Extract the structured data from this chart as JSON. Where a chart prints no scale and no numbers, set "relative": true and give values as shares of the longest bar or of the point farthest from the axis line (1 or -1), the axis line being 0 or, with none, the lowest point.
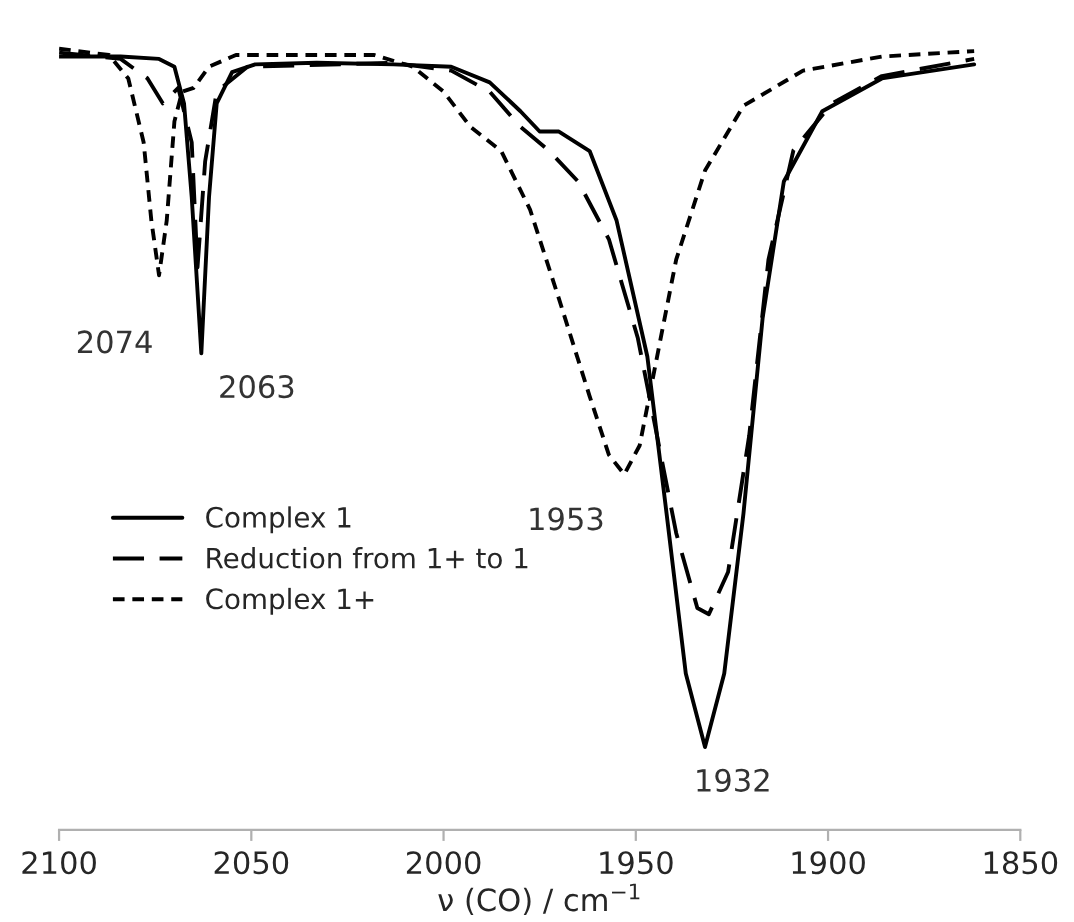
{
  "chart_data": {
    "type": "line",
    "relative": true,
    "xlabel": "ν (CO) / cm$^{−1}$",
    "xlim": [
      2100,
      1850
    ],
    "xticks": [
      2100,
      2050,
      2000,
      1950,
      1900,
      1850
    ],
    "grid": false,
    "legend": "left",
    "marker": "none",
    "series": [
      {
        "name": "Complex 1",
        "color": "#000000",
        "line_style": "solid",
        "x": [
          2100,
          2084,
          2074,
          2070,
          2067.5,
          2065.5,
          2063,
          2061,
          2059,
          2055,
          2049,
          2033,
          2013,
          1998,
          1988,
          1980,
          1975,
          1970,
          1962,
          1955,
          1947,
          1942,
          1937,
          1932,
          1927,
          1922,
          1917,
          1911.5,
          1901.5,
          1886,
          1862
        ],
        "values": [
          0.99,
          0.99,
          0.987,
          0.977,
          0.93,
          0.81,
          0.61,
          0.81,
          0.93,
          0.97,
          0.98,
          0.982,
          0.98,
          0.977,
          0.957,
          0.92,
          0.894,
          0.894,
          0.869,
          0.78,
          0.606,
          0.405,
          0.2,
          0.106,
          0.2,
          0.405,
          0.656,
          0.83,
          0.92,
          0.962,
          0.98
        ]
      },
      {
        "name": "Reduction from 1+ to 1",
        "color": "#000000",
        "line_style": "dashed",
        "x": [
          2100,
          2084,
          2077,
          2073,
          2069,
          2065.5,
          2064,
          2062,
          2059,
          2051,
          2013,
          1998,
          1988,
          1980,
          1972.5,
          1965,
          1957,
          1949.5,
          1944.5,
          1939.5,
          1934,
          1931,
          1926,
          1920.5,
          1915.5,
          1909,
          1899,
          1886,
          1862
        ],
        "values": [
          0.995,
          0.987,
          0.962,
          0.93,
          0.95,
          0.88,
          0.72,
          0.856,
          0.945,
          0.977,
          0.982,
          0.972,
          0.945,
          0.9,
          0.869,
          0.83,
          0.756,
          0.63,
          0.505,
          0.38,
          0.284,
          0.276,
          0.33,
          0.505,
          0.73,
          0.87,
          0.93,
          0.965,
          0.987
        ]
      },
      {
        "name": "Complex 1+",
        "color": "#000000",
        "line_style": "dotted",
        "x": [
          2100,
          2087,
          2082,
          2078,
          2076,
          2074,
          2072,
          2070,
          2068,
          2065,
          2061,
          2054,
          2018,
          2008,
          2000,
          1993,
          1985,
          1977.5,
          1970,
          1962,
          1957,
          1953,
          1949,
          1944.5,
          1939.5,
          1932,
          1922,
          1906.5,
          1886,
          1862
        ],
        "values": [
          1.0,
          0.992,
          0.962,
          0.88,
          0.78,
          0.71,
          0.78,
          0.907,
          0.945,
          0.95,
          0.977,
          0.992,
          0.992,
          0.977,
          0.945,
          0.9,
          0.869,
          0.794,
          0.68,
          0.555,
          0.48,
          0.455,
          0.492,
          0.605,
          0.73,
          0.844,
          0.927,
          0.972,
          0.99,
          0.997
        ]
      }
    ],
    "annotations": [
      {
        "text": "2074",
        "x": 2074,
        "y": 0.71
      },
      {
        "text": "2063",
        "x": 2063,
        "y": 0.61
      },
      {
        "text": "1953",
        "x": 1953,
        "y": 0.455
      },
      {
        "text": "1932",
        "x": 1932,
        "y": 0.106
      }
    ]
  }
}
